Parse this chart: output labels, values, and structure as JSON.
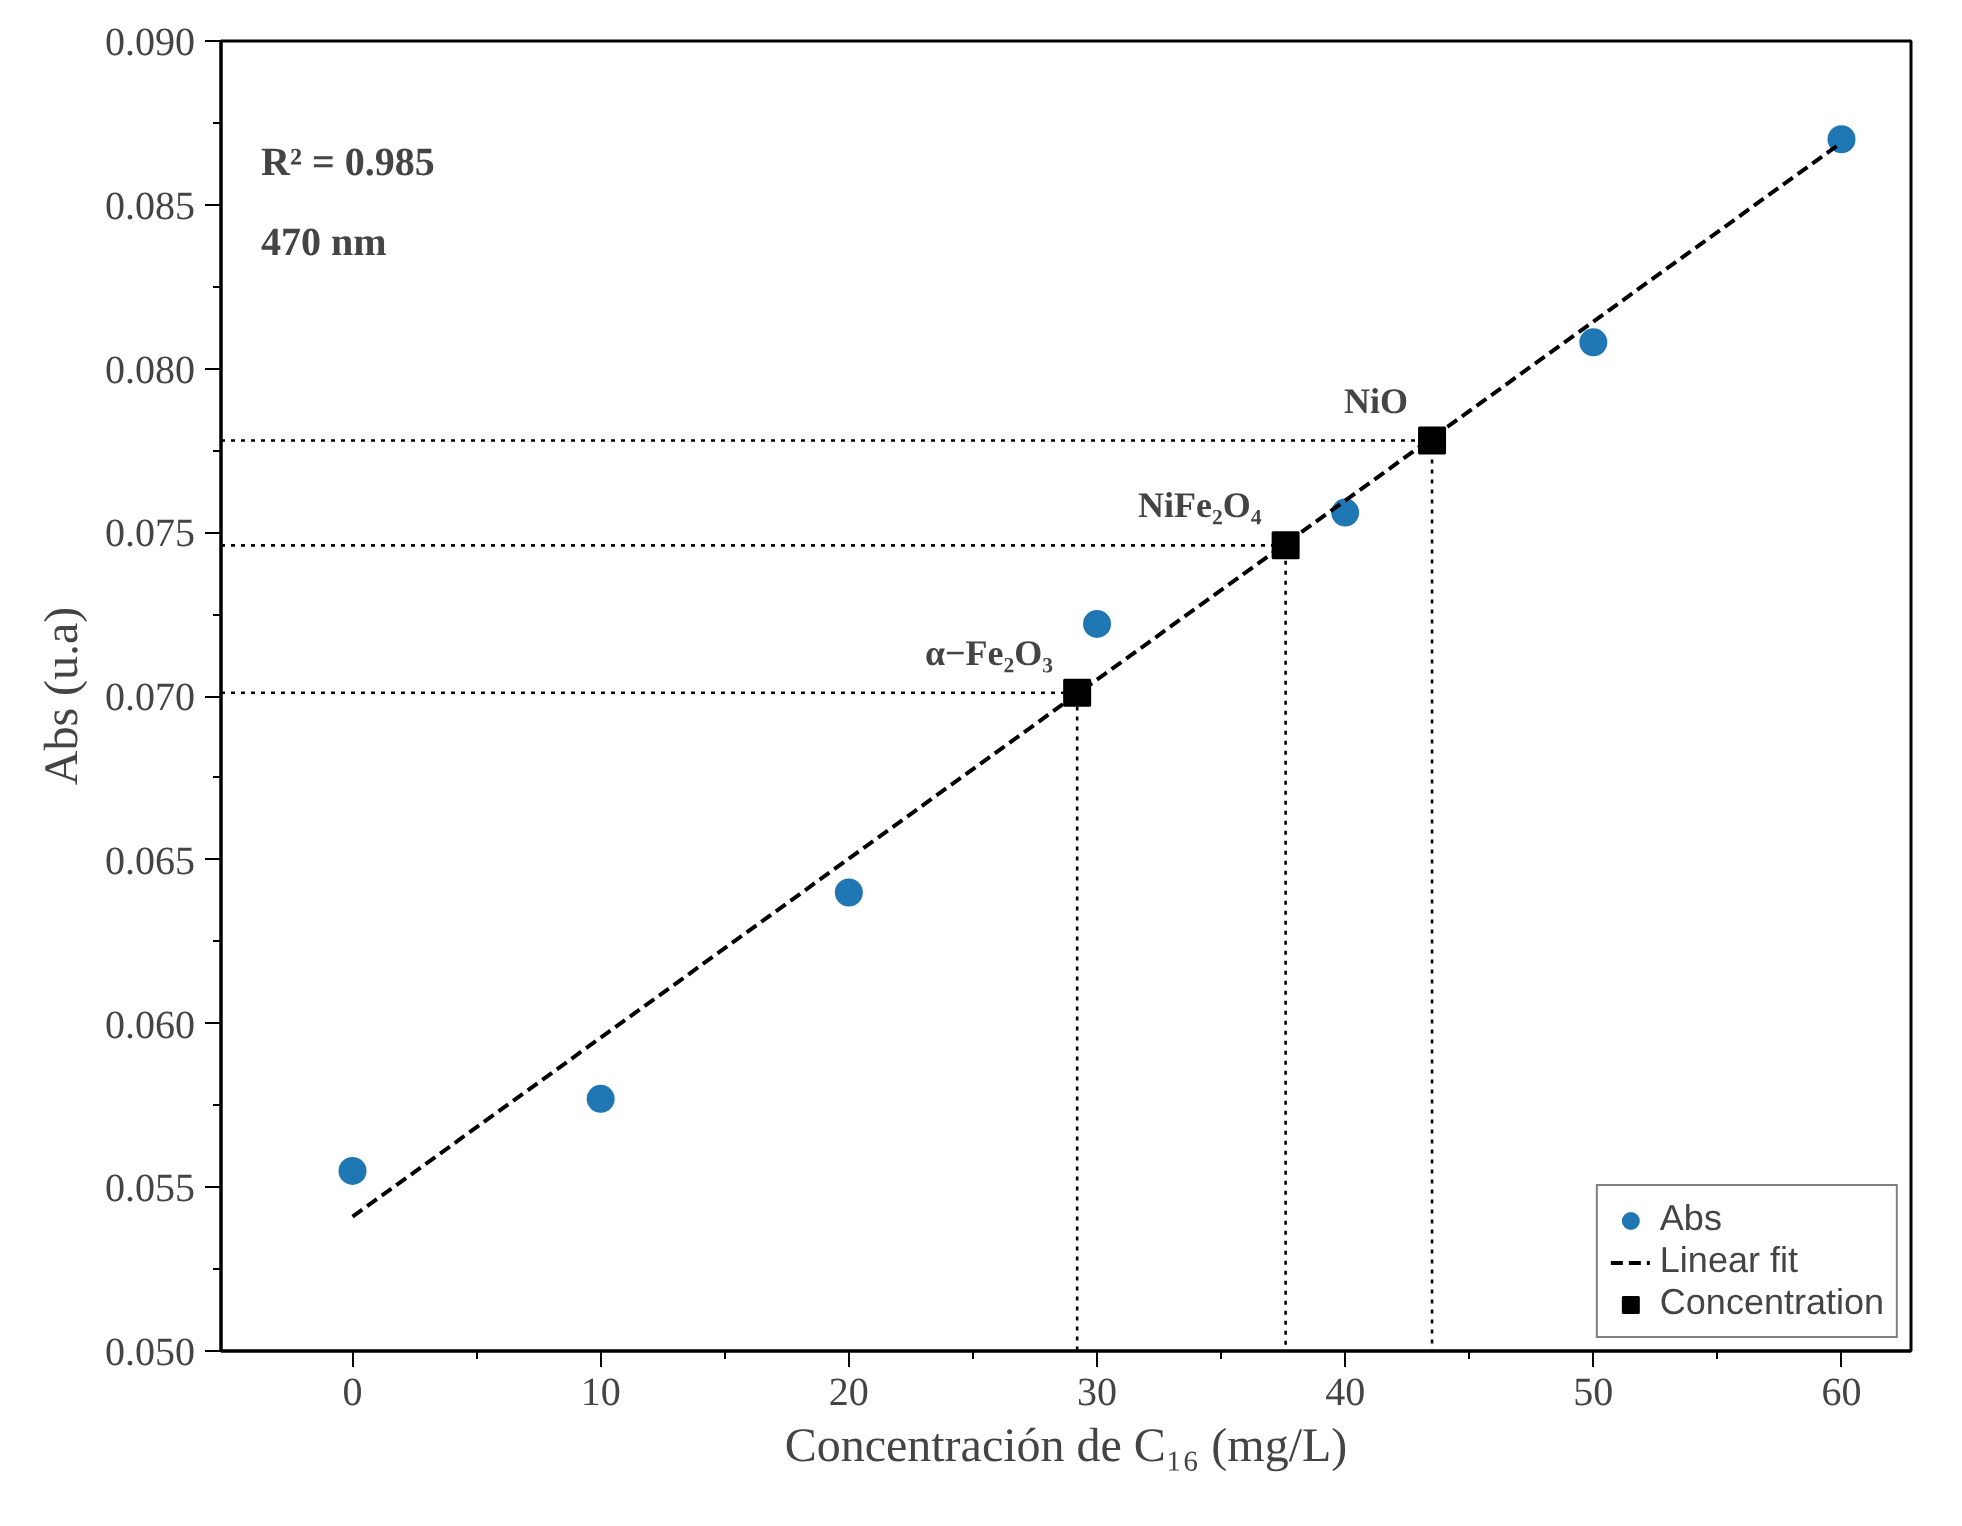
{
  "chart_data": {
    "type": "scatter",
    "xlabel": "Concentración de C₁₆ (mg/L)",
    "ylabel": "Abs (u.a)",
    "xlim": [
      -5.3,
      62.8
    ],
    "xticks": [
      0,
      10,
      20,
      30,
      40,
      50,
      60
    ],
    "ylim": [
      0.05,
      0.09
    ],
    "yticks": [
      {
        "value": 0.05,
        "label": "0.050"
      },
      {
        "value": 0.055,
        "label": "0.055"
      },
      {
        "value": 0.06,
        "label": "0.060"
      },
      {
        "value": 0.065,
        "label": "0.065"
      },
      {
        "value": 0.07,
        "label": "0.070"
      },
      {
        "value": 0.075,
        "label": "0.075"
      },
      {
        "value": 0.08,
        "label": "0.080"
      },
      {
        "value": 0.085,
        "label": "0.085"
      },
      {
        "value": 0.09,
        "label": "0.090"
      }
    ],
    "grid": false,
    "legend": "bottom right",
    "series": [
      {
        "type": "line",
        "color": "#000000",
        "line_style": "dotted",
        "marker": "none",
        "x": [
          -5.3,
          29.2,
          29.2
        ],
        "values": [
          0.0701,
          0.0701,
          0.05
        ]
      },
      {
        "type": "line",
        "color": "#000000",
        "line_style": "dotted",
        "marker": "none",
        "x": [
          -5.3,
          37.6,
          37.6
        ],
        "values": [
          0.0746,
          0.0746,
          0.05
        ]
      },
      {
        "type": "line",
        "color": "#000000",
        "line_style": "dotted",
        "marker": "none",
        "x": [
          -5.3,
          43.5,
          43.5
        ],
        "values": [
          0.0778,
          0.0778,
          0.05
        ]
      },
      {
        "name": "Abs",
        "color": "#1f77b4",
        "marker": "circle",
        "x": [
          0,
          10,
          20,
          30,
          40,
          50,
          60
        ],
        "values": [
          0.0555,
          0.0577,
          0.064,
          0.0722,
          0.0756,
          0.0808,
          0.087
        ]
      },
      {
        "name": "Linear fit",
        "type": "line",
        "color": "#000000",
        "line_style": "dashed",
        "marker": "none",
        "x": [
          0,
          60
        ],
        "values": [
          0.0541,
          0.0869
        ]
      },
      {
        "name": "Concentration",
        "color": "#000000",
        "marker": "square",
        "x": [
          29.2,
          37.6,
          43.5
        ],
        "values": [
          0.0701,
          0.0746,
          0.0778
        ]
      }
    ],
    "annotations": [
      "R² = 0.985",
      "470 nm",
      {
        "text": "α−Fe₂O₃",
        "x": 29.2,
        "y": 0.0701
      },
      {
        "text": "NiFe₂O₄",
        "x": 37.6,
        "y": 0.0746
      },
      {
        "text": "NiO",
        "x": 43.5,
        "y": 0.0778
      }
    ]
  }
}
